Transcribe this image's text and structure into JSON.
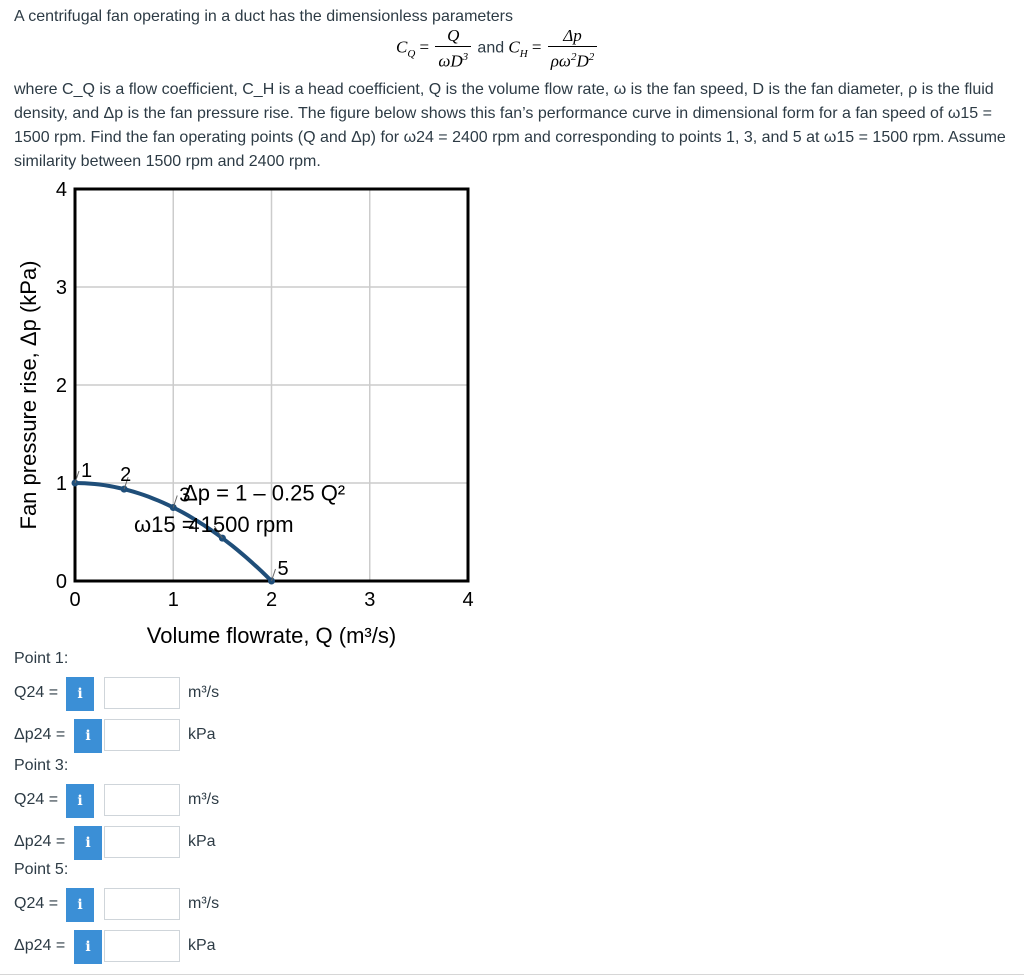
{
  "question": {
    "line0": "A centrifugal fan operating in a duct has the dimensionless parameters",
    "cq_label": "C",
    "cq_sub": "Q",
    "cq_num": "Q",
    "cq_den": "ωD",
    "cq_den_sup": "3",
    "and_text": "and",
    "ch_label": "C",
    "ch_sub": "H",
    "ch_num": "Δp",
    "ch_den": "ρω",
    "ch_den_sup": "2",
    "ch_den2": "D",
    "ch_den2_sup": "2",
    "eq": "=",
    "para": "where C_Q is a flow coefficient, C_H is a head coefficient, Q is the volume flow rate, ω is the fan speed, D is the fan diameter, ρ is the fluid density, and Δp is the fan pressure rise. The figure below shows this fan’s performance curve in dimensional form for a fan speed of ω15 = 1500 rpm. Find the fan operating points (Q and Δp) for ω24 = 2400 rpm and corresponding to points 1, 3, and 5 at ω15 = 1500 rpm. Assume similarity between 1500 rpm and 2400 rpm."
  },
  "chart_data": {
    "type": "line",
    "xlabel": "Volume flowrate, Q (m³/s)",
    "ylabel": "Fan pressure rise, Δp (kPa)",
    "xlim": [
      0,
      4
    ],
    "ylim": [
      0,
      4
    ],
    "x_ticks": [
      "0",
      "1",
      "2",
      "3",
      "4"
    ],
    "y_ticks": [
      "0",
      "1",
      "2",
      "3",
      "4"
    ],
    "grid": true,
    "curve_equation": "Δp = 1 – 0.25 Q²",
    "speed_label": "ω15 = 1500 rpm",
    "curve": {
      "x_min": 0,
      "x_max": 2,
      "a": 1,
      "b": 0.25
    },
    "points": [
      {
        "label": "1",
        "x": 0.0,
        "y": 1.0
      },
      {
        "label": "2",
        "x": 0.5,
        "y": 0.9375
      },
      {
        "label": "3",
        "x": 1.0,
        "y": 0.75
      },
      {
        "label": "4",
        "x": 1.5,
        "y": 0.4375
      },
      {
        "label": "5",
        "x": 2.0,
        "y": 0.0
      }
    ],
    "line_color": "#1f4e79"
  },
  "answers": [
    {
      "heading": "Point 1:",
      "q_label": "Q24 =",
      "q_unit": "m³/s",
      "p_label": "Δp24 =",
      "p_unit": "kPa",
      "q_value": "",
      "p_value": ""
    },
    {
      "heading": "Point 3:",
      "q_label": "Q24 =",
      "q_unit": "m³/s",
      "p_label": "Δp24 =",
      "p_unit": "kPa",
      "q_value": "",
      "p_value": ""
    },
    {
      "heading": "Point 5:",
      "q_label": "Q24 =",
      "q_unit": "m³/s",
      "p_label": "Δp24 =",
      "p_unit": "kPa",
      "q_value": "",
      "p_value": ""
    }
  ],
  "info_icon": "i"
}
